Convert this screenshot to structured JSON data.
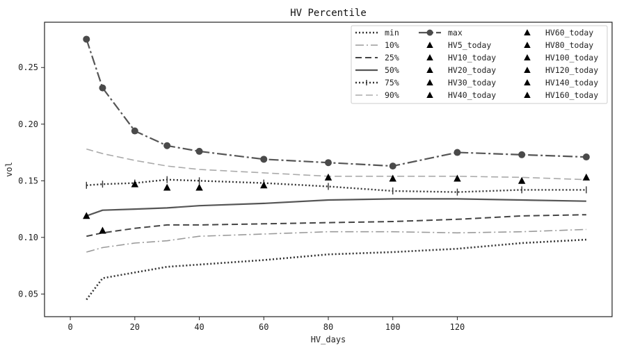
{
  "chart_data": {
    "type": "line",
    "title": "HV Percentile",
    "xlabel": "HV_days",
    "ylabel": "vol",
    "xlim": [
      -8,
      168
    ],
    "ylim": [
      0.03,
      0.29
    ],
    "xticks": [
      0,
      20,
      40,
      60,
      80,
      100,
      120
    ],
    "yticks": [
      0.05,
      0.1,
      0.15,
      0.2,
      0.25
    ],
    "ytick_labels": [
      "0.05",
      "0.10",
      "0.15",
      "0.20",
      "0.25"
    ],
    "legend_position": "top-right",
    "x": [
      5,
      10,
      20,
      30,
      40,
      60,
      80,
      100,
      120,
      140,
      160
    ],
    "series": [
      {
        "name": "min",
        "style": "dotted",
        "color": "#333333",
        "values": [
          0.045,
          0.064,
          0.069,
          0.074,
          0.076,
          0.08,
          0.085,
          0.087,
          0.09,
          0.095,
          0.098
        ]
      },
      {
        "name": "10%",
        "style": "dashdot-light",
        "color": "#9a9a9a",
        "values": [
          0.087,
          0.091,
          0.095,
          0.097,
          0.101,
          0.103,
          0.105,
          0.105,
          0.104,
          0.105,
          0.107
        ]
      },
      {
        "name": "25%",
        "style": "dashed",
        "color": "#444444",
        "values": [
          0.101,
          0.104,
          0.108,
          0.111,
          0.111,
          0.112,
          0.113,
          0.114,
          0.116,
          0.119,
          0.12
        ]
      },
      {
        "name": "50%",
        "style": "solid",
        "color": "#555555",
        "values": [
          0.119,
          0.124,
          0.125,
          0.126,
          0.128,
          0.13,
          0.133,
          0.134,
          0.134,
          0.133,
          0.132
        ]
      },
      {
        "name": "75%",
        "style": "dotted-ticks",
        "color": "#333333",
        "values": [
          0.146,
          0.147,
          0.148,
          0.151,
          0.15,
          0.148,
          0.145,
          0.141,
          0.14,
          0.142,
          0.142
        ]
      },
      {
        "name": "90%",
        "style": "dashed-light",
        "color": "#aaaaaa",
        "values": [
          0.178,
          0.174,
          0.168,
          0.163,
          0.16,
          0.157,
          0.154,
          0.154,
          0.154,
          0.153,
          0.151
        ]
      },
      {
        "name": "max",
        "style": "dashdot-markers",
        "color": "#555555",
        "values": [
          0.275,
          0.232,
          0.194,
          0.181,
          0.176,
          0.169,
          0.166,
          0.163,
          0.175,
          0.173,
          0.171
        ]
      }
    ],
    "today_points": [
      {
        "name": "HV5_today",
        "x": 5,
        "y": 0.119
      },
      {
        "name": "HV10_today",
        "x": 10,
        "y": 0.106
      },
      {
        "name": "HV20_today",
        "x": 20,
        "y": 0.147
      },
      {
        "name": "HV30_today",
        "x": 30,
        "y": 0.144
      },
      {
        "name": "HV40_today",
        "x": 40,
        "y": 0.144
      },
      {
        "name": "HV60_today",
        "x": 60,
        "y": 0.146
      },
      {
        "name": "HV80_today",
        "x": 80,
        "y": 0.153
      },
      {
        "name": "HV100_today",
        "x": 100,
        "y": 0.152
      },
      {
        "name": "HV120_today",
        "x": 120,
        "y": 0.152
      },
      {
        "name": "HV140_today",
        "x": 140,
        "y": 0.15
      },
      {
        "name": "HV160_today",
        "x": 160,
        "y": 0.153
      }
    ],
    "legend_columns": [
      [
        "min",
        "10%",
        "25%",
        "50%",
        "75%",
        "90%"
      ],
      [
        "max",
        "HV5_today",
        "HV10_today",
        "HV20_today",
        "HV30_today",
        "HV40_today"
      ],
      [
        "HV60_today",
        "HV80_today",
        "HV100_today",
        "HV120_today",
        "HV140_today",
        "HV160_today"
      ]
    ]
  }
}
